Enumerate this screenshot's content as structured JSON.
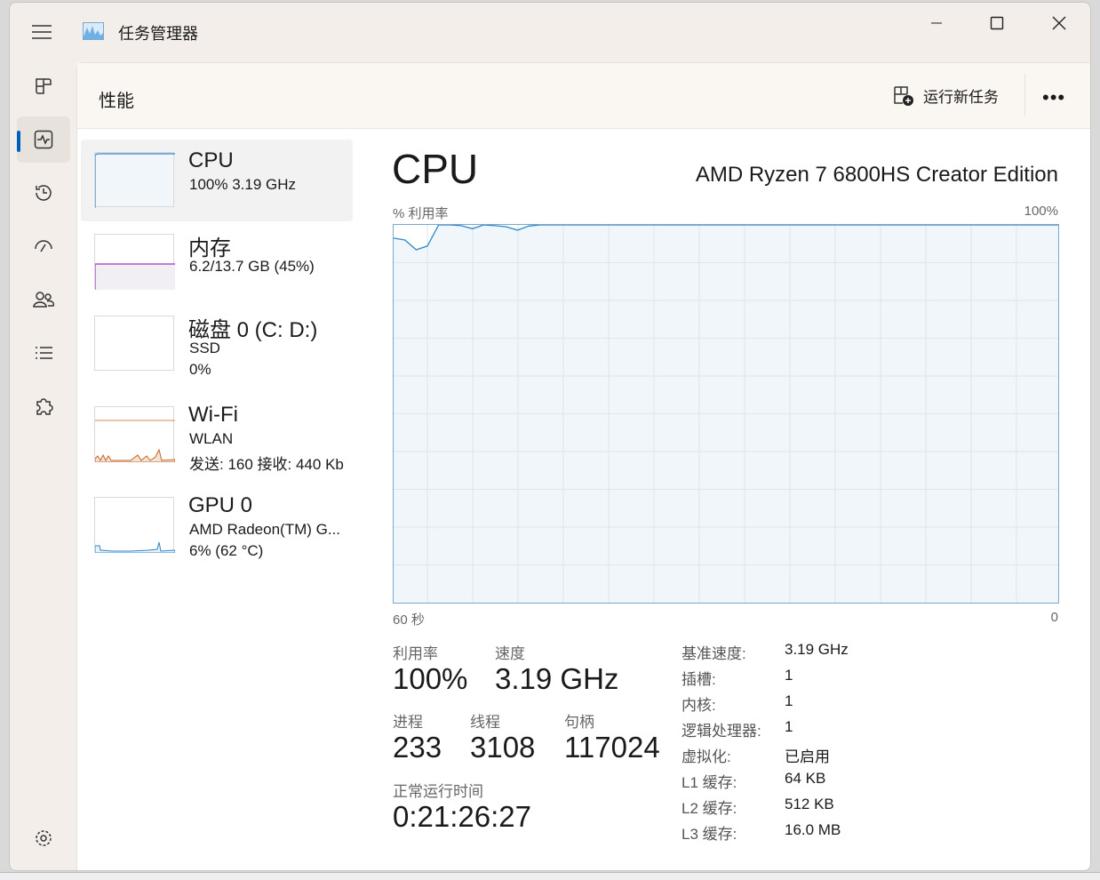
{
  "window": {
    "title": "任务管理器",
    "minimize_icon": "minimize-icon",
    "maximize_icon": "maximize-icon",
    "close_icon": "close-icon"
  },
  "nav": {
    "items": [
      {
        "name": "processes",
        "icon": "grid-icon"
      },
      {
        "name": "performance",
        "icon": "pulse-icon",
        "active": true
      },
      {
        "name": "app-history",
        "icon": "history-icon"
      },
      {
        "name": "startup",
        "icon": "speedometer-icon"
      },
      {
        "name": "users",
        "icon": "users-icon"
      },
      {
        "name": "details",
        "icon": "list-icon"
      },
      {
        "name": "services",
        "icon": "puzzle-icon"
      }
    ],
    "settings_icon": "gear-icon"
  },
  "header": {
    "title": "性能",
    "run_task": "运行新任务",
    "more": "•••"
  },
  "devices": [
    {
      "name": "CPU",
      "line1": "100%  3.19 GHz",
      "line2": ""
    },
    {
      "name": "内存",
      "line1": "6.2/13.7 GB (45%)",
      "line2": ""
    },
    {
      "name": "磁盘 0 (C: D:)",
      "line1": "SSD",
      "line2": "0%"
    },
    {
      "name": "Wi-Fi",
      "line1": "WLAN",
      "line2": "发送: 160 接收: 440 Kb"
    },
    {
      "name": "GPU 0",
      "line1": "AMD Radeon(TM) G...",
      "line2": "6% (62 °C)"
    }
  ],
  "detail": {
    "title": "CPU",
    "model": "AMD Ryzen 7 6800HS Creator Edition",
    "util": {
      "label": "利用率",
      "value": "100%"
    },
    "speed": {
      "label": "速度",
      "value": "3.19 GHz"
    },
    "processes": {
      "label": "进程",
      "value": "233"
    },
    "threads": {
      "label": "线程",
      "value": "3108"
    },
    "handles": {
      "label": "句柄",
      "value": "117024"
    },
    "uptime": {
      "label": "正常运行时间",
      "value": "0:21:26:27"
    },
    "specs": [
      {
        "k": "基准速度:",
        "v": "3.19 GHz"
      },
      {
        "k": "插槽:",
        "v": "1"
      },
      {
        "k": "内核:",
        "v": "1"
      },
      {
        "k": "逻辑处理器:",
        "v": "1"
      },
      {
        "k": "虚拟化:",
        "v": "已启用"
      },
      {
        "k": "L1 缓存:",
        "v": "64 KB"
      },
      {
        "k": "L2 缓存:",
        "v": "512 KB"
      },
      {
        "k": "L3 缓存:",
        "v": "16.0 MB"
      }
    ]
  },
  "chart_data": {
    "type": "area",
    "ylabel": "% 利用率",
    "ymax_label": "100%",
    "xmin_label": "60 秒",
    "xmax_label": "0",
    "ylim": [
      0,
      100
    ],
    "xlim": [
      60,
      0
    ],
    "grid": true,
    "color": "#2f87c7",
    "values": [
      96.5,
      96,
      93.4,
      94.4,
      100,
      100,
      99.8,
      99,
      100,
      99.8,
      99.5,
      98.6,
      99.7,
      100,
      100,
      100,
      100,
      100,
      100,
      100,
      100,
      100,
      100,
      100,
      100,
      100,
      100,
      100,
      100,
      100,
      100,
      100,
      100,
      100,
      100,
      100,
      100,
      100,
      100,
      100,
      100,
      100,
      100,
      100,
      100,
      100,
      100,
      100,
      100,
      100,
      100,
      100,
      100,
      100,
      100,
      100,
      100,
      100,
      100,
      100
    ]
  }
}
